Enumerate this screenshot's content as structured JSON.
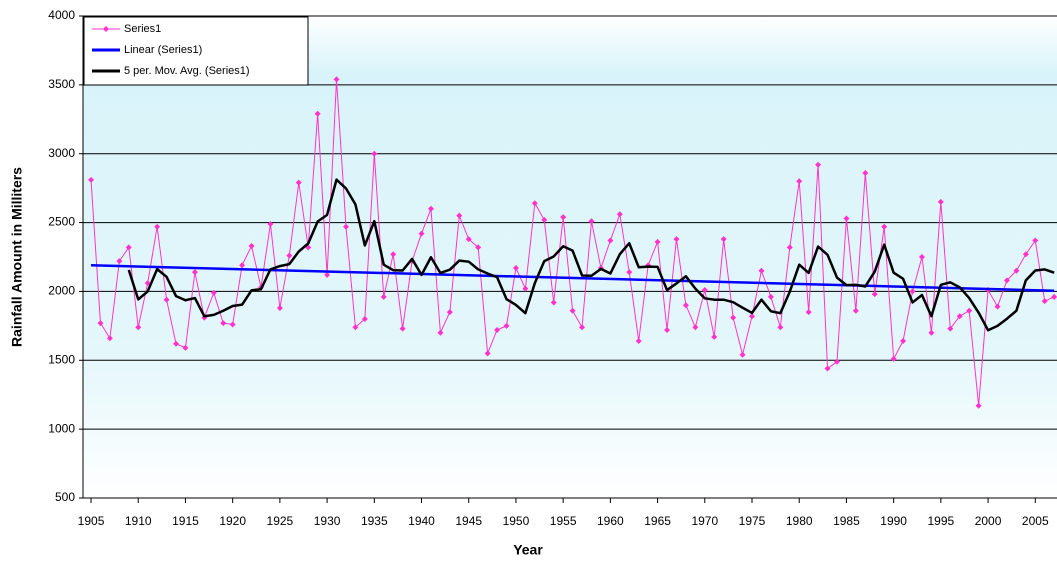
{
  "chart_data": {
    "type": "line",
    "xlabel": "Year",
    "ylabel": "Rainfall Amount in Milliters",
    "x": [
      1905,
      1906,
      1907,
      1908,
      1909,
      1910,
      1911,
      1912,
      1913,
      1914,
      1915,
      1916,
      1917,
      1918,
      1919,
      1920,
      1921,
      1922,
      1923,
      1924,
      1925,
      1926,
      1927,
      1928,
      1929,
      1930,
      1931,
      1932,
      1933,
      1934,
      1935,
      1936,
      1937,
      1938,
      1939,
      1940,
      1941,
      1942,
      1943,
      1944,
      1945,
      1946,
      1947,
      1948,
      1949,
      1950,
      1951,
      1952,
      1953,
      1954,
      1955,
      1956,
      1957,
      1958,
      1959,
      1960,
      1961,
      1962,
      1963,
      1964,
      1965,
      1966,
      1967,
      1968,
      1969,
      1970,
      1971,
      1972,
      1973,
      1974,
      1975,
      1976,
      1977,
      1978,
      1979,
      1980,
      1981,
      1982,
      1983,
      1984,
      1985,
      1986,
      1987,
      1988,
      1989,
      1990,
      1991,
      1992,
      1993,
      1994,
      1995,
      1996,
      1997,
      1998,
      1999,
      2000,
      2001,
      2002,
      2003,
      2004,
      2005,
      2006,
      2007
    ],
    "series": [
      {
        "name": "Series1",
        "color": "#ff33cc",
        "marker": true,
        "values": [
          2810,
          1770,
          1660,
          2220,
          2320,
          1740,
          2060,
          2470,
          1940,
          1620,
          1590,
          2140,
          1810,
          1990,
          1770,
          1760,
          2190,
          2330,
          2030,
          2490,
          1880,
          2260,
          2790,
          2320,
          3290,
          2120,
          3540,
          2470,
          1740,
          1800,
          3000,
          1960,
          2270,
          1730,
          2220,
          2420,
          2600,
          1700,
          1850,
          2550,
          2380,
          2320,
          1550,
          1720,
          1750,
          2170,
          2020,
          2640,
          2520,
          1920,
          2540,
          1860,
          1740,
          2510,
          2170,
          2370,
          2560,
          2140,
          1640,
          2190,
          2360,
          1720,
          2380,
          1900,
          1740,
          2010,
          1670,
          2380,
          1810,
          1540,
          1820,
          2150,
          1960,
          1740,
          2320,
          2800,
          1850,
          2920,
          1440,
          1490,
          2530,
          1860,
          2860,
          1980,
          2470,
          1510,
          1640,
          2000,
          2250,
          1700,
          2650,
          1730,
          1820,
          1860,
          1170,
          2010,
          1890,
          2080,
          2150,
          2270,
          2370,
          1930,
          1960
        ]
      },
      {
        "name": "Linear (Series1)",
        "color": "#0000ff",
        "x": [
          1905,
          2007
        ],
        "values": [
          2190,
          2005
        ]
      },
      {
        "name": "5 per. Mov. Avg. (Series1)",
        "color": "#000000",
        "values": [
          null,
          null,
          null,
          null,
          2156,
          1942,
          2000,
          2162,
          2106,
          1966,
          1936,
          1952,
          1820,
          1830,
          1860,
          1894,
          1904,
          2008,
          2016,
          2160,
          2184,
          2198,
          2290,
          2348,
          2508,
          2556,
          2812,
          2748,
          2632,
          2334,
          2510,
          2194,
          2154,
          2152,
          2236,
          2120,
          2248,
          2134,
          2158,
          2224,
          2216,
          2160,
          2130,
          2104,
          1944,
          1902,
          1842,
          2060,
          2220,
          2254,
          2328,
          2296,
          2116,
          2114,
          2164,
          2130,
          2270,
          2350,
          2176,
          2180,
          2178,
          2010,
          2058,
          2110,
          2020,
          1950,
          1940,
          1940,
          1922,
          1882,
          1844,
          1940,
          1856,
          1842,
          1998,
          2194,
          2134,
          2326,
          2266,
          2100,
          2046,
          2048,
          2036,
          2144,
          2340,
          2136,
          2092,
          1920,
          1974,
          1820,
          2048,
          2066,
          2030,
          1952,
          1846,
          1718,
          1750,
          1802,
          1860,
          2080,
          2152,
          2160,
          2136
        ]
      }
    ],
    "xlim": [
      1904.15,
      2007.3
    ],
    "xticks": [
      1905,
      1910,
      1915,
      1920,
      1925,
      1930,
      1935,
      1940,
      1945,
      1950,
      1955,
      1960,
      1965,
      1970,
      1975,
      1980,
      1985,
      1990,
      1995,
      2000,
      2005
    ],
    "ylim": [
      500,
      4000
    ],
    "yticks": [
      500,
      1000,
      1500,
      2000,
      2500,
      3000,
      3500,
      4000
    ],
    "grid": true,
    "legend": "top-left"
  }
}
